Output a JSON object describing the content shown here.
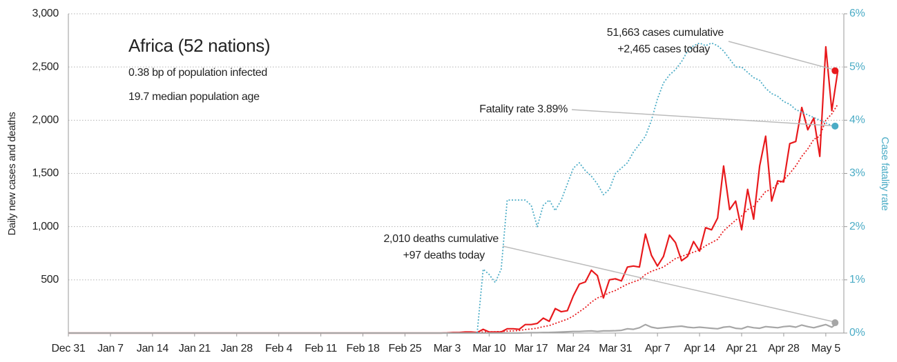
{
  "chart_data": {
    "type": "line",
    "title": "Africa (52 nations)",
    "subtitle_lines": [
      "0.38 bp of population infected",
      "19.7 median population age"
    ],
    "ylabel": "Daily new cases and deaths",
    "y2label": "Case fatality rate",
    "categories": [
      "Dec 31",
      null,
      null,
      null,
      null,
      null,
      null,
      "Jan 7",
      null,
      null,
      null,
      null,
      null,
      null,
      "Jan 14",
      null,
      null,
      null,
      null,
      null,
      null,
      "Jan 21",
      null,
      null,
      null,
      null,
      null,
      null,
      "Jan 28",
      null,
      null,
      null,
      null,
      null,
      null,
      "Feb 4",
      null,
      null,
      null,
      null,
      null,
      null,
      "Feb 11",
      null,
      null,
      null,
      null,
      null,
      null,
      "Feb 18",
      null,
      null,
      null,
      null,
      null,
      null,
      "Feb 25",
      null,
      null,
      null,
      null,
      null,
      null,
      "Mar 3",
      null,
      null,
      null,
      null,
      null,
      null,
      "Mar 10",
      null,
      null,
      null,
      null,
      null,
      null,
      "Mar 17",
      null,
      null,
      null,
      null,
      null,
      null,
      "Mar 24",
      null,
      null,
      null,
      null,
      null,
      null,
      "Mar 31",
      null,
      null,
      null,
      null,
      null,
      null,
      "Apr 7",
      null,
      null,
      null,
      null,
      null,
      null,
      "Apr 14",
      null,
      null,
      null,
      null,
      null,
      null,
      "Apr 21",
      null,
      null,
      null,
      null,
      null,
      null,
      "Apr 28",
      null,
      null,
      null,
      null,
      null,
      null,
      "May 5",
      null,
      null
    ],
    "ylim": [
      0,
      3000
    ],
    "yticks": [
      {
        "value": 500,
        "label": "500"
      },
      {
        "value": 1000,
        "label": "1,000"
      },
      {
        "value": 1500,
        "label": "1,500"
      },
      {
        "value": 2000,
        "label": "2,000"
      },
      {
        "value": 2500,
        "label": "2,500"
      },
      {
        "value": 3000,
        "label": "3,000"
      }
    ],
    "y2lim": [
      0,
      6
    ],
    "y2ticks": [
      {
        "value": 0,
        "label": "0%"
      },
      {
        "value": 1,
        "label": "1%"
      },
      {
        "value": 2,
        "label": "2%"
      },
      {
        "value": 3,
        "label": "3%"
      },
      {
        "value": 4,
        "label": "4%"
      },
      {
        "value": 5,
        "label": "5%"
      },
      {
        "value": 6,
        "label": "6%"
      }
    ],
    "grid": true,
    "series": [
      {
        "color": "#e8191c",
        "style": "solid",
        "values": [
          0,
          0,
          0,
          0,
          0,
          0,
          0,
          0,
          0,
          0,
          0,
          0,
          0,
          0,
          0,
          0,
          0,
          0,
          0,
          0,
          0,
          0,
          0,
          0,
          0,
          0,
          0,
          0,
          0,
          0,
          0,
          0,
          0,
          0,
          0,
          0,
          0,
          0,
          0,
          0,
          0,
          0,
          0,
          0,
          0,
          0,
          0,
          0,
          0,
          0,
          0,
          0,
          0,
          0,
          0,
          0,
          0,
          0,
          0,
          0,
          0,
          0,
          0,
          2,
          5,
          5,
          10,
          10,
          5,
          35,
          10,
          10,
          10,
          40,
          40,
          35,
          80,
          80,
          90,
          140,
          110,
          230,
          200,
          210,
          350,
          460,
          480,
          590,
          540,
          330,
          500,
          510,
          490,
          620,
          630,
          620,
          930,
          730,
          630,
          720,
          920,
          850,
          680,
          720,
          860,
          770,
          990,
          970,
          1080,
          1570,
          1160,
          1240,
          970,
          1350,
          1070,
          1570,
          1850,
          1240,
          1430,
          1420,
          1780,
          1800,
          2120,
          1910,
          2020,
          1660,
          2690,
          2090,
          2465
        ]
      },
      {
        "color": "#e8191c",
        "style": "dotted",
        "values": [
          0,
          0,
          0,
          0,
          0,
          0,
          0,
          0,
          0,
          0,
          0,
          0,
          0,
          0,
          0,
          0,
          0,
          0,
          0,
          0,
          0,
          0,
          0,
          0,
          0,
          0,
          0,
          0,
          0,
          0,
          0,
          0,
          0,
          0,
          0,
          0,
          0,
          0,
          0,
          0,
          0,
          0,
          0,
          0,
          0,
          0,
          0,
          0,
          0,
          0,
          0,
          0,
          0,
          0,
          0,
          0,
          0,
          0,
          0,
          0,
          0,
          0,
          0,
          1,
          2,
          3,
          4,
          5,
          6,
          10,
          11,
          12,
          14,
          18,
          20,
          24,
          33,
          38,
          46,
          60,
          70,
          90,
          110,
          130,
          160,
          200,
          240,
          290,
          330,
          350,
          380,
          400,
          430,
          460,
          480,
          500,
          550,
          580,
          600,
          620,
          660,
          700,
          720,
          740,
          760,
          780,
          820,
          850,
          880,
          960,
          1010,
          1060,
          1100,
          1160,
          1190,
          1260,
          1330,
          1350,
          1400,
          1440,
          1500,
          1570,
          1660,
          1730,
          1820,
          1850,
          2000,
          2060,
          2150
        ]
      },
      {
        "color": "#a6a6a6",
        "style": "solid",
        "values": [
          0,
          0,
          0,
          0,
          0,
          0,
          0,
          0,
          0,
          0,
          0,
          0,
          0,
          0,
          0,
          0,
          0,
          0,
          0,
          0,
          0,
          0,
          0,
          0,
          0,
          0,
          0,
          0,
          0,
          0,
          0,
          0,
          0,
          0,
          0,
          0,
          0,
          0,
          0,
          0,
          0,
          0,
          0,
          0,
          0,
          0,
          0,
          0,
          0,
          0,
          0,
          0,
          0,
          0,
          0,
          0,
          0,
          0,
          0,
          0,
          0,
          0,
          0,
          0,
          0,
          0,
          0,
          0,
          0,
          0,
          0,
          0,
          0,
          0,
          0,
          0,
          2,
          3,
          3,
          5,
          6,
          8,
          10,
          12,
          15,
          15,
          18,
          20,
          15,
          20,
          20,
          22,
          25,
          40,
          35,
          50,
          80,
          55,
          45,
          50,
          55,
          60,
          65,
          55,
          50,
          55,
          50,
          45,
          40,
          55,
          60,
          45,
          40,
          60,
          50,
          45,
          60,
          55,
          50,
          60,
          65,
          55,
          75,
          60,
          50,
          65,
          80,
          55,
          97
        ]
      },
      {
        "color": "#4bacc6",
        "style": "dotted",
        "axis": "y2",
        "values": [
          null,
          null,
          null,
          null,
          null,
          null,
          null,
          null,
          null,
          null,
          null,
          null,
          null,
          null,
          null,
          null,
          null,
          null,
          null,
          null,
          null,
          null,
          null,
          null,
          null,
          null,
          null,
          null,
          null,
          null,
          null,
          null,
          null,
          null,
          null,
          null,
          null,
          null,
          null,
          null,
          null,
          null,
          null,
          null,
          null,
          null,
          null,
          null,
          null,
          null,
          null,
          null,
          null,
          null,
          null,
          null,
          null,
          null,
          null,
          null,
          null,
          null,
          null,
          null,
          null,
          null,
          null,
          null,
          0,
          1.2,
          1.1,
          0.95,
          1.2,
          2.5,
          2.5,
          2.5,
          2.5,
          2.4,
          2.0,
          2.4,
          2.5,
          2.3,
          2.5,
          2.8,
          3.1,
          3.2,
          3.05,
          2.95,
          2.8,
          2.6,
          2.7,
          3.0,
          3.1,
          3.2,
          3.4,
          3.55,
          3.7,
          4.0,
          4.4,
          4.7,
          4.85,
          4.95,
          5.1,
          5.3,
          5.4,
          5.45,
          5.4,
          5.45,
          5.4,
          5.3,
          5.15,
          5.0,
          5.0,
          4.9,
          4.8,
          4.75,
          4.6,
          4.5,
          4.45,
          4.35,
          4.3,
          4.2,
          4.15,
          4.1,
          4.05,
          4.0,
          3.95,
          3.9,
          3.89
        ]
      }
    ],
    "annotations": [
      {
        "lines": [
          "51,663 cases cumulative",
          "+2,465 cases today"
        ],
        "series": 0
      },
      {
        "lines": [
          "Fatality rate 3.89%"
        ],
        "series": 3
      },
      {
        "lines": [
          "2,010 deaths cumulative",
          "+97 deaths today"
        ],
        "series": 2
      }
    ]
  }
}
